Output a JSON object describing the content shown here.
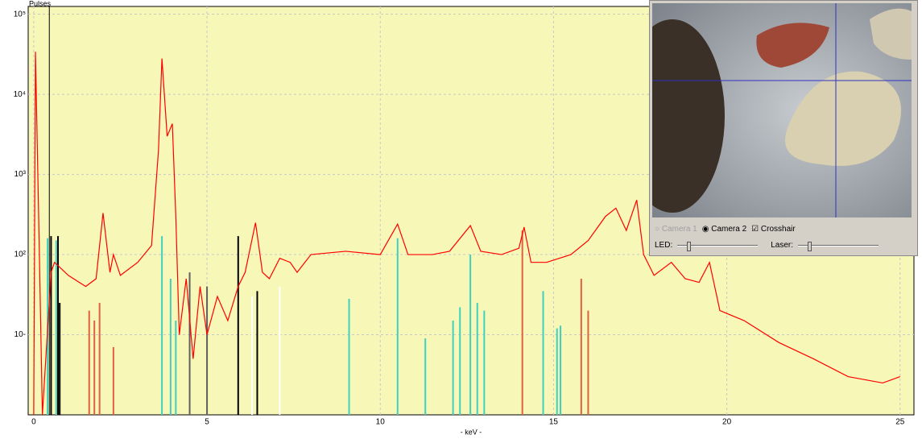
{
  "chart_data": {
    "type": "line",
    "y_label": "Pulses",
    "x_label": "- keV -",
    "log_y": true,
    "grid": true,
    "xlim": [
      -0.16,
      25.4
    ],
    "ylim": [
      1,
      125000
    ],
    "xticks": [
      0,
      5,
      10,
      15,
      20,
      25
    ],
    "yticks": [
      {
        "value": 100000,
        "label": "10⁵"
      },
      {
        "value": 10000,
        "label": "10⁴"
      },
      {
        "value": 1000,
        "label": "10³"
      },
      {
        "value": 100,
        "label": "10²"
      },
      {
        "value": 10,
        "label": "10-"
      }
    ],
    "cursor_x": 0.45,
    "series": [
      {
        "color": "#ff0000",
        "x": [
          0.0,
          0.05,
          0.15,
          0.25,
          0.5,
          0.6,
          1.0,
          1.5,
          1.8,
          2.0,
          2.2,
          2.3,
          2.5,
          3.0,
          3.4,
          3.6,
          3.7,
          3.85,
          4.0,
          4.1,
          4.2,
          4.4,
          4.6,
          4.8,
          5.0,
          5.3,
          5.6,
          5.9,
          6.1,
          6.4,
          6.6,
          6.8,
          7.1,
          7.4,
          7.6,
          8.0,
          9.0,
          10.0,
          10.5,
          10.8,
          11.5,
          12.0,
          12.6,
          12.9,
          13.5,
          14.0,
          14.15,
          14.35,
          14.8,
          15.5,
          16.0,
          16.5,
          16.8,
          17.1,
          17.4,
          17.6,
          17.9,
          18.4,
          18.8,
          19.2,
          19.5,
          19.8,
          20.5,
          21.5,
          22.5,
          23.5,
          24.5,
          25.0
        ],
        "values": [
          1,
          34000,
          200,
          1,
          60,
          80,
          55,
          40,
          50,
          330,
          60,
          100,
          55,
          80,
          130,
          2000,
          28000,
          3000,
          4300,
          300,
          10,
          50,
          5,
          40,
          10,
          30,
          15,
          40,
          60,
          250,
          60,
          50,
          90,
          80,
          60,
          100,
          110,
          100,
          240,
          100,
          100,
          110,
          230,
          110,
          100,
          120,
          220,
          80,
          80,
          100,
          150,
          300,
          380,
          200,
          480,
          100,
          55,
          80,
          50,
          45,
          80,
          20,
          15,
          8,
          5,
          3,
          2.5,
          3
        ]
      }
    ],
    "reference_lines": [
      {
        "x": 0.4,
        "value": 160,
        "color": "#40d0c0"
      },
      {
        "x": 0.5,
        "value": 170,
        "color": "#000000"
      },
      {
        "x": 0.65,
        "value": 150,
        "color": "#40d0c0"
      },
      {
        "x": 0.7,
        "value": 170,
        "color": "#000000"
      },
      {
        "x": 0.75,
        "value": 25,
        "color": "#000000"
      },
      {
        "x": 1.6,
        "value": 20,
        "color": "#e06040"
      },
      {
        "x": 1.75,
        "value": 15,
        "color": "#e06040"
      },
      {
        "x": 1.9,
        "value": 25,
        "color": "#e06040"
      },
      {
        "x": 2.3,
        "value": 7,
        "color": "#e06040"
      },
      {
        "x": 3.7,
        "value": 170,
        "color": "#40d0c0"
      },
      {
        "x": 3.95,
        "value": 50,
        "color": "#40d0c0"
      },
      {
        "x": 4.1,
        "value": 15,
        "color": "#40d0c0"
      },
      {
        "x": 4.5,
        "value": 60,
        "color": "#606060"
      },
      {
        "x": 5.0,
        "value": 40,
        "color": "#606060"
      },
      {
        "x": 5.9,
        "value": 170,
        "color": "#000000"
      },
      {
        "x": 6.3,
        "value": 30,
        "color": "#ffffff"
      },
      {
        "x": 6.45,
        "value": 35,
        "color": "#000000"
      },
      {
        "x": 7.1,
        "value": 40,
        "color": "#ffffff"
      },
      {
        "x": 9.1,
        "value": 28,
        "color": "#40d0c0"
      },
      {
        "x": 10.5,
        "value": 160,
        "color": "#40d0c0"
      },
      {
        "x": 11.3,
        "value": 9,
        "color": "#40d0c0"
      },
      {
        "x": 12.1,
        "value": 15,
        "color": "#40d0c0"
      },
      {
        "x": 12.3,
        "value": 22,
        "color": "#40d0c0"
      },
      {
        "x": 12.6,
        "value": 100,
        "color": "#40d0c0"
      },
      {
        "x": 12.8,
        "value": 25,
        "color": "#40d0c0"
      },
      {
        "x": 13.0,
        "value": 20,
        "color": "#40d0c0"
      },
      {
        "x": 14.1,
        "value": 200,
        "color": "#e06040"
      },
      {
        "x": 14.7,
        "value": 35,
        "color": "#40d0c0"
      },
      {
        "x": 15.1,
        "value": 12,
        "color": "#40d0c0"
      },
      {
        "x": 15.2,
        "value": 13,
        "color": "#40d0c0"
      },
      {
        "x": 15.8,
        "value": 50,
        "color": "#e06040"
      },
      {
        "x": 16.0,
        "value": 20,
        "color": "#e06040"
      }
    ]
  },
  "camera_panel": {
    "camera1": "Camera 1",
    "camera2": "Camera 2",
    "crosshair": "Crosshair",
    "led": "LED:",
    "laser": "Laser:"
  }
}
